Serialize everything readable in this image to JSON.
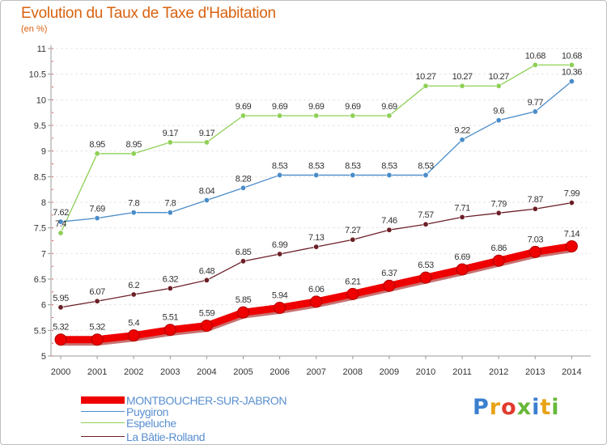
{
  "header": {
    "title": "Evolution du Taux de Taxe d'Habitation",
    "unit": "(en %)"
  },
  "chart_data": {
    "type": "line",
    "x": [
      2000,
      2001,
      2002,
      2003,
      2004,
      2005,
      2006,
      2007,
      2008,
      2009,
      2010,
      2011,
      2012,
      2013,
      2014
    ],
    "ylim": [
      5,
      11
    ],
    "yticks": [
      "5",
      "5.5",
      "6",
      "6.5",
      "7",
      "7.5",
      "8",
      "8.5",
      "9",
      "9.5",
      "10",
      "10.5",
      "11"
    ],
    "legend_position": "bottom",
    "series": [
      {
        "name": "La Bâtie-Rolland",
        "color": "#6b1f26",
        "values": [
          5.95,
          6.07,
          6.2,
          6.32,
          6.48,
          6.85,
          6.99,
          7.13,
          7.27,
          7.46,
          7.57,
          7.71,
          7.79,
          7.87,
          7.99
        ],
        "labels": [
          "5.95",
          "6.07",
          "6.2",
          "6.32",
          "6.48",
          "6.85",
          "6.99",
          "7.13",
          "7.27",
          "7.46",
          "7.57",
          "7.71",
          "7.79",
          "7.87",
          "7.99"
        ]
      },
      {
        "name": "Espeluche",
        "color": "#8ed056",
        "values": [
          7.4,
          8.95,
          8.95,
          9.17,
          9.17,
          9.69,
          9.69,
          9.69,
          9.69,
          9.69,
          10.27,
          10.27,
          10.27,
          10.68,
          10.68
        ],
        "labels": [
          "7.4",
          "8.95",
          "8.95",
          "9.17",
          "9.17",
          "9.69",
          "9.69",
          "9.69",
          "9.69",
          "9.69",
          "10.27",
          "10.27",
          "10.27",
          "10.68",
          "10.68"
        ]
      },
      {
        "name": "Puygiron",
        "color": "#4a8cc9",
        "values": [
          7.62,
          7.69,
          7.8,
          7.8,
          8.04,
          8.28,
          8.53,
          8.53,
          8.53,
          8.53,
          8.53,
          9.22,
          9.6,
          9.77,
          10.36
        ],
        "labels": [
          "7.62",
          "7.69",
          "7.8",
          "7.8",
          "8.04",
          "8.28",
          "8.53",
          "8.53",
          "8.53",
          "8.53",
          "8.53",
          "9.22",
          "9.6",
          "9.77",
          "10.36"
        ]
      },
      {
        "name": "MONTBOUCHER-SUR-JABRON",
        "color": "#ee0000",
        "values": [
          5.32,
          5.32,
          5.4,
          5.51,
          5.59,
          5.85,
          5.94,
          6.06,
          6.21,
          6.37,
          6.53,
          6.69,
          6.86,
          7.03,
          7.14
        ],
        "labels": [
          "5.32",
          "5.32",
          "5.4",
          "5.51",
          "5.59",
          "5.85",
          "5.94",
          "6.06",
          "6.21",
          "6.37",
          "6.53",
          "6.69",
          "6.86",
          "7.03",
          "7.14"
        ]
      }
    ]
  },
  "legend": [
    {
      "label": "MONTBOUCHER-SUR-JABRON",
      "color": "#ee0000"
    },
    {
      "label": "Puygiron",
      "color": "#4a8cc9"
    },
    {
      "label": "Espeluche",
      "color": "#8ed056"
    },
    {
      "label": "La Bâtie-Rolland",
      "color": "#6b1f26"
    }
  ],
  "logo": {
    "text": "Proxiti",
    "letters": [
      "P",
      "r",
      "o",
      "x",
      "i",
      "t",
      "i"
    ],
    "colors": [
      "#3a7fcf",
      "#e8a317",
      "#e23a2e",
      "#67b83a",
      "#3a7fcf",
      "#e8a317",
      "#67b83a"
    ]
  }
}
